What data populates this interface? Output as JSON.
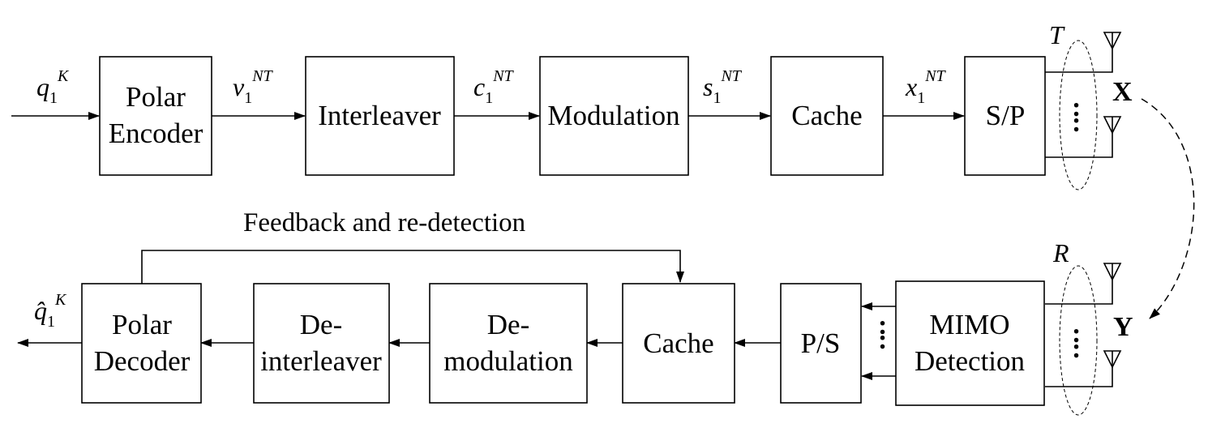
{
  "transmitter": {
    "input": {
      "base": "q",
      "sub": "1",
      "sup": "K"
    },
    "blocks": [
      {
        "line1": "Polar",
        "line2": "Encoder"
      },
      {
        "line1": "Interleaver",
        "line2": ""
      },
      {
        "line1": "Modulation",
        "line2": ""
      },
      {
        "line1": "Cache",
        "line2": ""
      },
      {
        "line1": "S/P",
        "line2": ""
      }
    ],
    "signals": [
      {
        "base": "v",
        "sub": "1",
        "sup": "NT"
      },
      {
        "base": "c",
        "sub": "1",
        "sup": "NT"
      },
      {
        "base": "s",
        "sub": "1",
        "sup": "NT"
      },
      {
        "base": "x",
        "sub": "1",
        "sup": "NT"
      }
    ],
    "antenna_label": "T",
    "matrix_label": "X"
  },
  "receiver": {
    "output": {
      "base": "q̂",
      "sub": "1",
      "sup": "K"
    },
    "blocks": [
      {
        "line1": "Polar",
        "line2": "Decoder"
      },
      {
        "line1": "De-",
        "line2": "interleaver"
      },
      {
        "line1": "De-",
        "line2": "modulation"
      },
      {
        "line1": "Cache",
        "line2": ""
      },
      {
        "line1": "P/S",
        "line2": ""
      },
      {
        "line1": "MIMO",
        "line2": "Detection"
      }
    ],
    "antenna_label": "R",
    "matrix_label": "Y"
  },
  "feedback_label": "Feedback and re-detection",
  "dots": ":"
}
